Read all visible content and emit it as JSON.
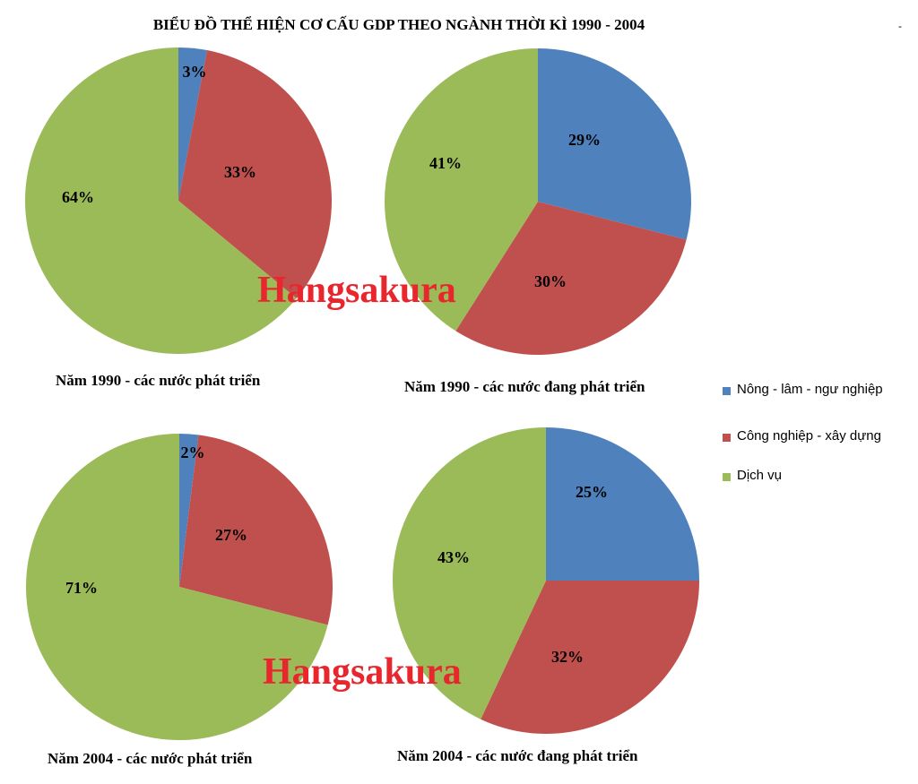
{
  "page": {
    "title": "BIỂU ĐỒ THỂ HIỆN CƠ CẤU GDP THEO NGÀNH THỜI KÌ 1990 - 2004",
    "corner_mark": "-",
    "watermark": "Hangsakura"
  },
  "colors": {
    "agriculture": "#4f81bd",
    "industry": "#c0504d",
    "services": "#9bbb59"
  },
  "legend": [
    {
      "label": "Nông  - lâm - ngư nghiệp",
      "color": "#4f81bd"
    },
    {
      "label": "Công  nghiệp - xây dựng",
      "color": "#c0504d"
    },
    {
      "label": "Dịch vụ",
      "color": "#9bbb59"
    }
  ],
  "chart_data": [
    {
      "type": "pie",
      "title": "Năm 1990 - các nước phát triển",
      "categories": [
        "Nông  - lâm - ngư nghiệp",
        "Công  nghiệp - xây dựng",
        "Dịch vụ"
      ],
      "values": [
        3,
        33,
        64
      ],
      "labels": [
        "3%",
        "33%",
        "64%"
      ]
    },
    {
      "type": "pie",
      "title": "Năm 1990 - các nước đang phát triển",
      "categories": [
        "Nông  - lâm - ngư nghiệp",
        "Công  nghiệp - xây dựng",
        "Dịch vụ"
      ],
      "values": [
        29,
        30,
        41
      ],
      "labels": [
        "29%",
        "30%",
        "41%"
      ]
    },
    {
      "type": "pie",
      "title": "Năm 2004 -  các nước phát triển",
      "categories": [
        "Nông  - lâm - ngư nghiệp",
        "Công  nghiệp - xây dựng",
        "Dịch vụ"
      ],
      "values": [
        2,
        27,
        71
      ],
      "labels": [
        "2%",
        "27%",
        "71%"
      ]
    },
    {
      "type": "pie",
      "title": "Năm 2004 -  các nước đang phát triển",
      "categories": [
        "Nông  - lâm - ngư nghiệp",
        "Công  nghiệp - xây dựng",
        "Dịch vụ"
      ],
      "values": [
        25,
        32,
        43
      ],
      "labels": [
        "25%",
        "32%",
        "43%"
      ]
    }
  ]
}
